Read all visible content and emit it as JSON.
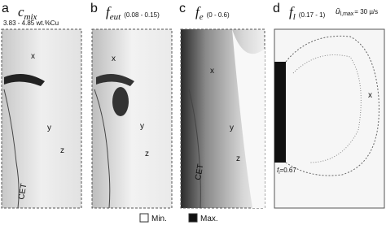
{
  "panels": [
    {
      "letter": "a",
      "title": "c",
      "subscript": "mix",
      "range": "3.83 - 4.85 wt.%Cu",
      "labels": [
        "x",
        "y",
        "z",
        "CET"
      ]
    },
    {
      "letter": "b",
      "title": "f",
      "subscript": "eut",
      "range": "(0.08 - 0.15)",
      "labels": [
        "x",
        "y",
        "z"
      ]
    },
    {
      "letter": "c",
      "title": "f",
      "subscript": "e",
      "range": "(0 - 0.6)",
      "labels": [
        "x",
        "y",
        "z",
        "CET"
      ]
    },
    {
      "letter": "d",
      "title": "f",
      "subscript": "l",
      "range": "(0.17 - 1)",
      "labels": [
        "x"
      ],
      "velocity": "ū",
      "velocity_sub": "l,max",
      "velocity_value": "= 30 µ/s",
      "fraction": "f",
      "fraction_sub": "l",
      "fraction_value": "=0.67"
    }
  ],
  "legend": {
    "min": "Min.",
    "max": "Max."
  }
}
